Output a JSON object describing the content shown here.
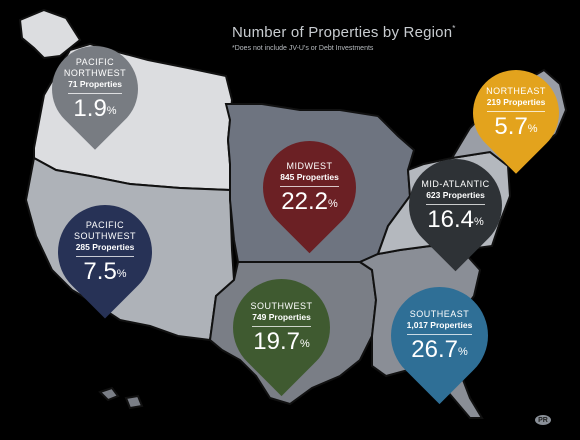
{
  "title": "Number of Properties by Region",
  "title_mark": "*",
  "subtitle": "*Does not include JV-U's or Debt Investments",
  "pct_sign": "%",
  "logo_text": "PR",
  "colors": {
    "background": "#000000",
    "pacific_northwest_states": "#dcdde0",
    "pacific_southwest_states": "#aeb2b8",
    "midwest_states": "#6e7480",
    "southwest_states": "#7a7e86",
    "southeast_states": "#8a8e96",
    "northeast_states": "#9a9ea6",
    "mid_atlantic_states": "#b4b8be",
    "region_borders": "#111111"
  },
  "regions": [
    {
      "name_line1": "PACIFIC",
      "name_line2": "NORTHWEST",
      "count": "71 Properties",
      "pct": "1.9",
      "color": "#787c82"
    },
    {
      "name_line1": "NORTHEAST",
      "name_line2": "",
      "count": "219 Properties",
      "pct": "5.7",
      "color": "#e3a31d"
    },
    {
      "name_line1": "MIDWEST",
      "name_line2": "",
      "count": "845 Properties",
      "pct": "22.2",
      "color": "#6b2024"
    },
    {
      "name_line1": "MID-ATLANTIC",
      "name_line2": "",
      "count": "623 Properties",
      "pct": "16.4",
      "color": "#2e3236"
    },
    {
      "name_line1": "PACIFIC",
      "name_line2": "SOUTHWEST",
      "count": "285 Properties",
      "pct": "7.5",
      "color": "#273256"
    },
    {
      "name_line1": "SOUTHWEST",
      "name_line2": "",
      "count": "749 Properties",
      "pct": "19.7",
      "color": "#3f5a30"
    },
    {
      "name_line1": "SOUTHEAST",
      "name_line2": "",
      "count": "1,017 Properties",
      "pct": "26.7",
      "color": "#2f6f96"
    }
  ]
}
